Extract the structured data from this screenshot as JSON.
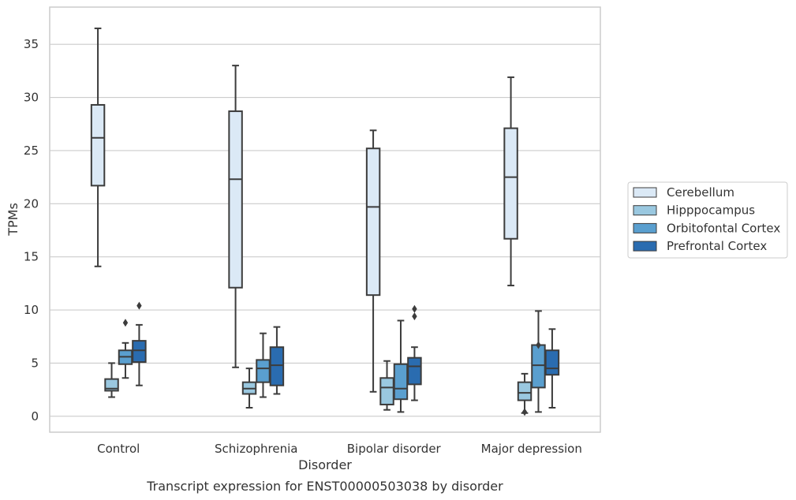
{
  "chart_data": {
    "type": "box",
    "caption": "Transcript expression for ENST00000503038 by disorder",
    "xlabel": "Disorder",
    "ylabel": "TPMs",
    "ylim": [
      -1.5,
      38.5
    ],
    "yticks": [
      0,
      5,
      10,
      15,
      20,
      25,
      30,
      35
    ],
    "ytick_labels": [
      "0",
      "5",
      "10",
      "15",
      "20",
      "25",
      "30",
      "35"
    ],
    "grid": true,
    "legend_position": "right",
    "categories": [
      "Control",
      "Schizophrenia",
      "Bipolar disorder",
      "Major depression"
    ],
    "series": [
      {
        "name": "Cerebellum",
        "color": "#dbe9f6",
        "boxes": [
          {
            "whisker_low": 14.1,
            "q1": 21.7,
            "median": 26.2,
            "q3": 29.3,
            "whisker_high": 36.5,
            "outliers": []
          },
          {
            "whisker_low": 4.6,
            "q1": 12.1,
            "median": 22.3,
            "q3": 28.7,
            "whisker_high": 33.0,
            "outliers": []
          },
          {
            "whisker_low": 2.3,
            "q1": 11.4,
            "median": 19.7,
            "q3": 25.2,
            "whisker_high": 26.9,
            "outliers": []
          },
          {
            "whisker_low": 12.3,
            "q1": 16.7,
            "median": 22.5,
            "q3": 27.1,
            "whisker_high": 31.9,
            "outliers": []
          }
        ]
      },
      {
        "name": "Hipppocampus",
        "color": "#9ac8e0",
        "boxes": [
          {
            "whisker_low": 1.8,
            "q1": 2.4,
            "median": 2.6,
            "q3": 3.5,
            "whisker_high": 5.0,
            "outliers": []
          },
          {
            "whisker_low": 0.8,
            "q1": 2.1,
            "median": 2.6,
            "q3": 3.2,
            "whisker_high": 4.5,
            "outliers": []
          },
          {
            "whisker_low": 0.6,
            "q1": 1.1,
            "median": 2.7,
            "q3": 3.6,
            "whisker_high": 5.2,
            "outliers": []
          },
          {
            "whisker_low": 0.3,
            "q1": 1.5,
            "median": 2.2,
            "q3": 3.2,
            "whisker_high": 4.0,
            "outliers": [
              0.4
            ]
          }
        ]
      },
      {
        "name": "Orbitofontal Cortex",
        "color": "#5a9fcf",
        "boxes": [
          {
            "whisker_low": 3.6,
            "q1": 4.9,
            "median": 5.6,
            "q3": 6.2,
            "whisker_high": 6.9,
            "outliers": [
              8.8
            ]
          },
          {
            "whisker_low": 1.8,
            "q1": 3.2,
            "median": 4.5,
            "q3": 5.3,
            "whisker_high": 7.8,
            "outliers": []
          },
          {
            "whisker_low": 0.4,
            "q1": 1.6,
            "median": 2.6,
            "q3": 4.9,
            "whisker_high": 9.0,
            "outliers": []
          },
          {
            "whisker_low": 0.4,
            "q1": 2.7,
            "median": 4.8,
            "q3": 6.7,
            "whisker_high": 9.9,
            "outliers": [
              6.7
            ]
          }
        ]
      },
      {
        "name": "Prefrontal Cortex",
        "color": "#2a6cb0",
        "boxes": [
          {
            "whisker_low": 2.9,
            "q1": 5.1,
            "median": 6.2,
            "q3": 7.1,
            "whisker_high": 8.6,
            "outliers": [
              10.4
            ]
          },
          {
            "whisker_low": 2.1,
            "q1": 2.9,
            "median": 4.8,
            "q3": 6.5,
            "whisker_high": 8.4,
            "outliers": []
          },
          {
            "whisker_low": 1.5,
            "q1": 3.0,
            "median": 4.7,
            "q3": 5.5,
            "whisker_high": 6.5,
            "outliers": [
              9.4,
              10.1
            ]
          },
          {
            "whisker_low": 0.8,
            "q1": 3.9,
            "median": 4.5,
            "q3": 6.2,
            "whisker_high": 8.2,
            "outliers": []
          }
        ]
      }
    ]
  }
}
